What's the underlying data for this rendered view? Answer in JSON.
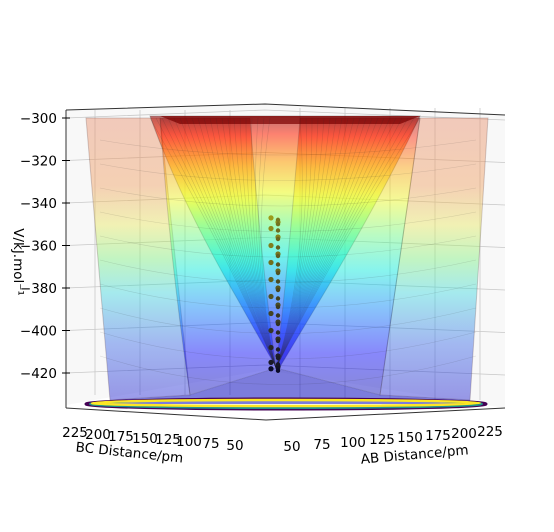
{
  "chart_data": {
    "type": "surface",
    "title": "",
    "zlabel": "V/kJ.mol$^{-1}$",
    "zlabel_text": "V/kJ.mol⁻¹",
    "xlabel": "AB Distance/pm",
    "ylabel": "BC Distance/pm",
    "z_ticks": [
      -300,
      -320,
      -340,
      -360,
      -380,
      -400,
      -420
    ],
    "z_tick_labels": [
      "−300",
      "−320",
      "−340",
      "−360",
      "−380",
      "−400",
      "−420"
    ],
    "zlim": [
      -437,
      -298
    ],
    "x_ticks": [
      50,
      75,
      100,
      125,
      150,
      175,
      200,
      225
    ],
    "x_tick_labels": [
      "50",
      "75",
      "100",
      "125",
      "150",
      "175",
      "200",
      "225"
    ],
    "y_ticks": [
      225,
      200,
      175,
      150,
      125,
      100,
      75,
      50
    ],
    "y_tick_labels": [
      "225",
      "200",
      "175",
      "150",
      "125",
      "100",
      "75",
      "50"
    ],
    "surface": {
      "colormap": "jet",
      "alpha": 0.45,
      "min_energy": -437,
      "plateau_energy": -300,
      "description_free": true
    },
    "trajectory": {
      "color_start": "#9c9c1a",
      "color_end": "#0a0a2a",
      "z_values": [
        -347,
        -349,
        -352,
        -356,
        -360,
        -364,
        -368,
        -372,
        -376,
        -380,
        -384,
        -388,
        -392,
        -396,
        -400,
        -404,
        -408,
        -412,
        -415,
        -417,
        -418
      ],
      "x_values": [
        92,
        92,
        92,
        92,
        92,
        92,
        92,
        92,
        92,
        92,
        92,
        92,
        92,
        92,
        92,
        92,
        92,
        92,
        92,
        92,
        92
      ],
      "y_values": [
        92,
        92,
        92,
        92,
        92,
        92,
        92,
        92,
        92,
        92,
        92,
        92,
        92,
        92,
        92,
        92,
        92,
        92,
        92,
        92,
        92
      ]
    },
    "contour_floor": {
      "colors": [
        "#fde725",
        "#21918c",
        "#3b528b",
        "#440154"
      ]
    },
    "grid": true,
    "legend": "none"
  }
}
